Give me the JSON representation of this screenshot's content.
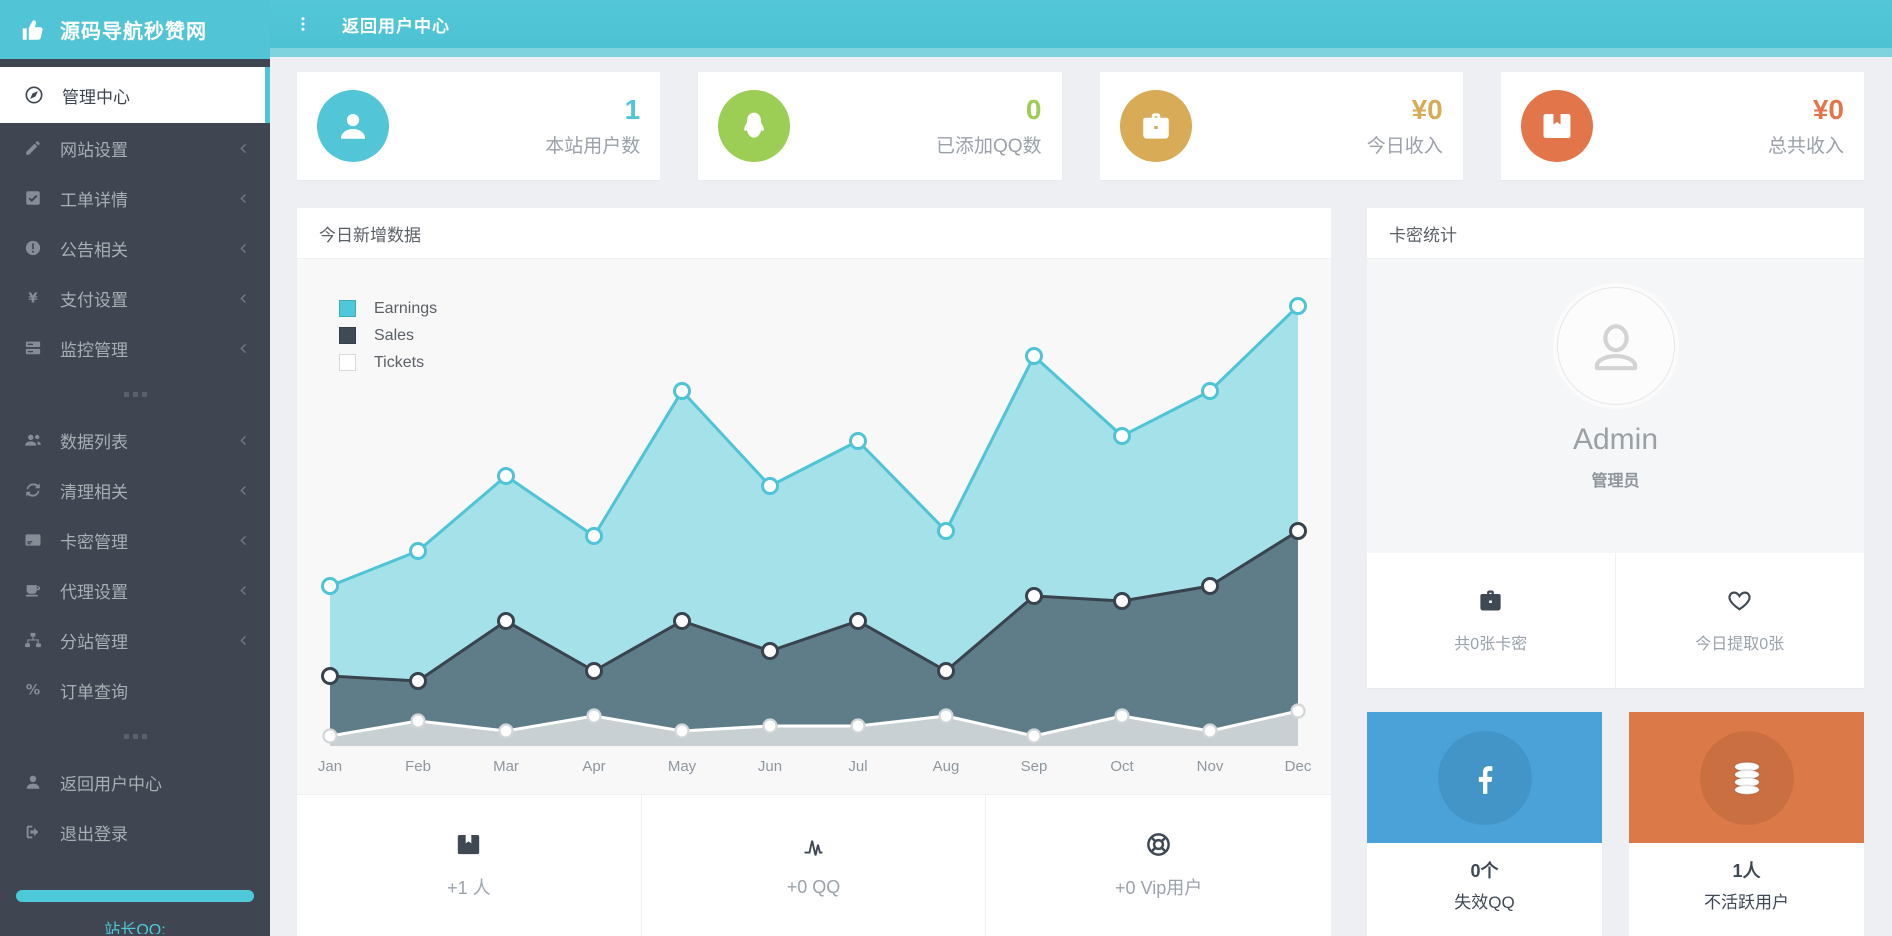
{
  "brand": {
    "title": "源码导航秒赞网",
    "icon": "thumbs-up"
  },
  "topbar": {
    "menu_label": "返回用户中心",
    "dots_icon": "dots-vertical"
  },
  "sidebar": {
    "items": [
      {
        "label": "管理中心",
        "icon": "dashboard",
        "active": true
      },
      {
        "label": "网站设置",
        "icon": "pencil",
        "chevron": true
      },
      {
        "label": "工单详情",
        "icon": "check-square",
        "chevron": true
      },
      {
        "label": "公告相关",
        "icon": "exclamation-circle",
        "chevron": true
      },
      {
        "label": "支付设置",
        "icon": "yen",
        "chevron": true
      },
      {
        "label": "监控管理",
        "icon": "server",
        "chevron": true
      },
      {
        "divider": true
      },
      {
        "label": "数据列表",
        "icon": "users",
        "chevron": true
      },
      {
        "label": "清理相关",
        "icon": "refresh",
        "chevron": true
      },
      {
        "label": "卡密管理",
        "icon": "credit-card",
        "chevron": true
      },
      {
        "label": "代理设置",
        "icon": "coffee",
        "chevron": true
      },
      {
        "label": "分站管理",
        "icon": "sitemap",
        "chevron": true
      },
      {
        "label": "订单查询",
        "icon": "percent"
      },
      {
        "divider": true
      },
      {
        "label": "返回用户中心",
        "icon": "user"
      },
      {
        "label": "退出登录",
        "icon": "logout"
      }
    ],
    "footer": {
      "qq_label": "站长QQ:",
      "bar_color": "#4ec9d9"
    }
  },
  "stat_cards": [
    {
      "value": "1",
      "label": "本站用户数",
      "icon": "user",
      "color": "#52c6d6"
    },
    {
      "value": "0",
      "label": "已添加QQ数",
      "icon": "qq",
      "color": "#9ccd55"
    },
    {
      "value": "¥0",
      "label": "今日收入",
      "icon": "briefcase",
      "color": "#d8ab57"
    },
    {
      "value": "¥0",
      "label": "总共收入",
      "icon": "wallet",
      "color": "#e2764a"
    }
  ],
  "chart_panel": {
    "title": "今日新增数据",
    "footer_stats": [
      {
        "value": "+1 人",
        "icon": "wallet"
      },
      {
        "value": "+0 QQ",
        "icon": "pulse"
      },
      {
        "value": "+0 Vip用户",
        "icon": "life-ring"
      }
    ]
  },
  "chart_data": {
    "type": "area",
    "title": "今日新增数据",
    "x": [
      "Jan",
      "Feb",
      "Mar",
      "Apr",
      "May",
      "Jun",
      "Jul",
      "Aug",
      "Sep",
      "Oct",
      "Nov",
      "Dec"
    ],
    "ylim": [
      0,
      100
    ],
    "grid": false,
    "legend_position": "top-left",
    "series": [
      {
        "name": "Earnings",
        "values": [
          32,
          39,
          54,
          42,
          71,
          52,
          61,
          43,
          78,
          62,
          71,
          88
        ],
        "fill": "#a5e1e9",
        "line": "#4ec4d6",
        "point_stroke": "#4ec4d6",
        "legend": "#4fc8d9"
      },
      {
        "name": "Sales",
        "values": [
          14,
          13,
          25,
          15,
          25,
          19,
          25,
          15,
          30,
          29,
          32,
          43
        ],
        "fill": "#5f7d88",
        "line": "#39434e",
        "point_stroke": "#39434e",
        "legend": "#3e4a54"
      },
      {
        "name": "Tickets",
        "values": [
          2,
          5,
          3,
          6,
          3,
          4,
          4,
          6,
          2,
          6,
          3,
          7
        ],
        "fill": "#c9d0d4",
        "line": "#ffffff",
        "point_stroke": "#d2d6d8",
        "legend": "#ffffff"
      }
    ]
  },
  "right_panel": {
    "title": "卡密统计",
    "profile": {
      "name": "Admin",
      "role": "管理员",
      "avatar_icon": "user-outline"
    },
    "stats": [
      {
        "label": "共0张卡密",
        "icon": "briefcase"
      },
      {
        "label": "今日提取0张",
        "icon": "heart"
      }
    ]
  },
  "tiles": [
    {
      "value": "0个",
      "label": "失效QQ",
      "icon": "facebook",
      "color": "#4aa2d8"
    },
    {
      "value": "1人",
      "label": "不活跃用户",
      "icon": "database",
      "color": "#dc7948"
    }
  ]
}
